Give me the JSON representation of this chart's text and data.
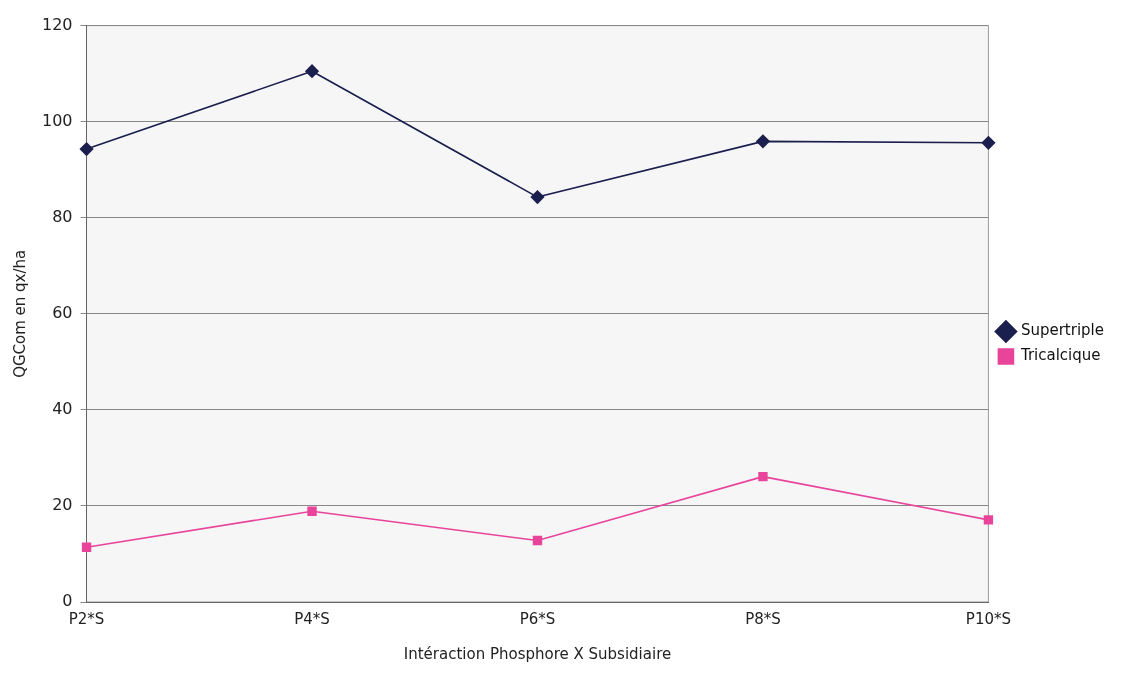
{
  "chart_data": {
    "type": "line",
    "xlabel": "Intéraction Phosphore X Subsidiaire",
    "ylabel": "QGCom en qx/ha",
    "categories": [
      "P2*S",
      "P4*S",
      "P6*S",
      "P8*S",
      "P10*S"
    ],
    "series": [
      {
        "name": "Supertriple",
        "color": "#1a1f4e",
        "marker": "diamond",
        "values": [
          94.3,
          110.5,
          84.3,
          95.9,
          95.6
        ]
      },
      {
        "name": "Tricalcique",
        "color": "#e8449a",
        "marker": "square",
        "values": [
          11.4,
          18.9,
          12.8,
          26.1,
          17.1
        ]
      }
    ],
    "ylim": [
      0,
      120
    ],
    "yticks": [
      0,
      20,
      40,
      60,
      80,
      100,
      120
    ],
    "grid": "y",
    "legend": "right",
    "line_style": "solid"
  }
}
